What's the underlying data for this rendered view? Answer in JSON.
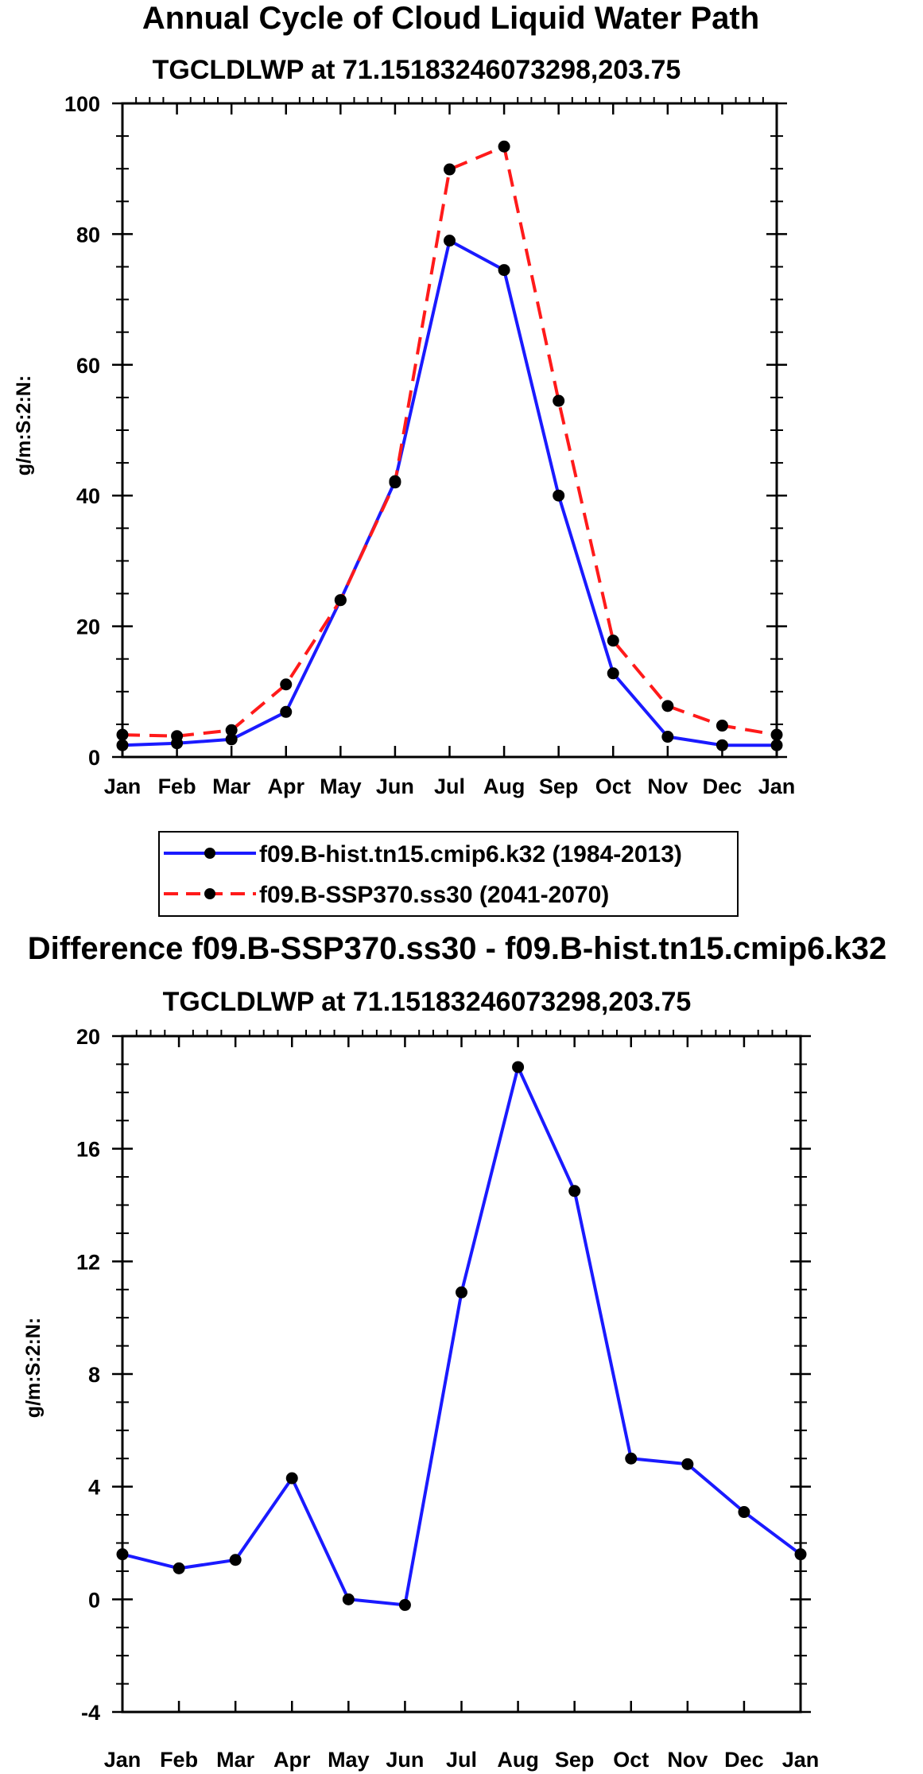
{
  "chart_data": [
    {
      "type": "line",
      "title": "Annual Cycle of Cloud Liquid Water Path",
      "subtitle": "TGCLDLWP at 71.15183246073298,203.75",
      "ylabel": "g/m:S:2:N:",
      "xlabel": "",
      "categories": [
        "Jan",
        "Feb",
        "Mar",
        "Apr",
        "May",
        "Jun",
        "Jul",
        "Aug",
        "Sep",
        "Oct",
        "Nov",
        "Dec",
        "Jan"
      ],
      "ylim": [
        0,
        100
      ],
      "yticks": [
        0,
        20,
        40,
        60,
        80,
        100
      ],
      "ytick_labels": [
        "0",
        "20",
        "40",
        "60",
        "80",
        "100"
      ],
      "y_minor_step": 5,
      "series": [
        {
          "name": "f09.B-hist.tn15.cmip6.k32 (1984-2013)",
          "color": "#1a1aff",
          "style": "solid",
          "values": [
            1.8,
            2.1,
            2.7,
            6.9,
            24.0,
            42.2,
            79.0,
            74.5,
            40.0,
            12.8,
            3.1,
            1.8,
            1.8
          ]
        },
        {
          "name": "f09.B-SSP370.ss30 (2041-2070)",
          "color": "#ff1a1a",
          "style": "dashed",
          "values": [
            3.4,
            3.2,
            4.1,
            11.1,
            24.0,
            42.0,
            89.9,
            93.4,
            54.5,
            17.8,
            7.8,
            4.8,
            3.4
          ]
        }
      ],
      "legend": {
        "position": "below",
        "entries": [
          "f09.B-hist.tn15.cmip6.k32 (1984-2013)",
          "f09.B-SSP370.ss30 (2041-2070)"
        ]
      }
    },
    {
      "type": "line",
      "title": "Difference f09.B-SSP370.ss30 - f09.B-hist.tn15.cmip6.k32",
      "subtitle": "TGCLDLWP at 71.15183246073298,203.75",
      "ylabel": "g/m:S:2:N:",
      "xlabel": "",
      "categories": [
        "Jan",
        "Feb",
        "Mar",
        "Apr",
        "May",
        "Jun",
        "Jul",
        "Aug",
        "Sep",
        "Oct",
        "Nov",
        "Dec",
        "Jan"
      ],
      "ylim": [
        -4,
        20
      ],
      "yticks": [
        -4,
        0,
        4,
        8,
        12,
        16,
        20
      ],
      "ytick_labels": [
        "-4",
        "0",
        "4",
        "8",
        "12",
        "16",
        "20"
      ],
      "y_minor_step": 1,
      "series": [
        {
          "name": "Difference",
          "color": "#1a1aff",
          "style": "solid",
          "values": [
            1.6,
            1.1,
            1.4,
            4.3,
            0.0,
            -0.2,
            10.9,
            18.9,
            14.5,
            5.0,
            4.8,
            3.1,
            1.6
          ]
        }
      ]
    }
  ]
}
